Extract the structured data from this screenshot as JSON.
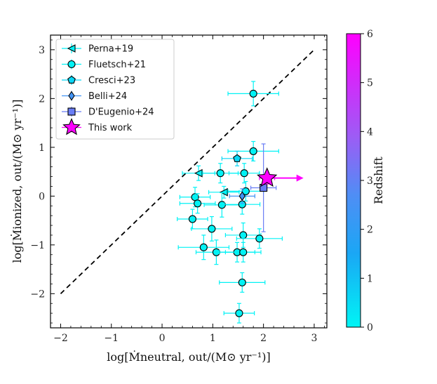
{
  "chart_data": {
    "type": "scatter",
    "xlabel": "log[Ṁneutral, out/(M⊙ yr⁻¹)]",
    "ylabel": "log[Ṁionized, out/(M⊙ yr⁻¹)]",
    "xlim": [
      -2.2,
      3.25
    ],
    "ylim": [
      -2.7,
      3.3
    ],
    "x_ticks": [
      "−2",
      "−1",
      "0",
      "1",
      "2",
      "3"
    ],
    "y_ticks": [
      "−2",
      "−1",
      "0",
      "1",
      "2",
      "3"
    ],
    "one_to_one_line": {
      "from": [
        -2,
        -2
      ],
      "to": [
        3,
        3
      ],
      "style": "dashed",
      "color": "#000000"
    },
    "colorbar": {
      "label": "Redshift",
      "range": [
        0,
        6
      ],
      "ticks": [
        "0",
        "1",
        "2",
        "3",
        "4",
        "5",
        "6"
      ],
      "colors": [
        "#00f5f5",
        "#ff00ff"
      ]
    },
    "legend": {
      "placement": "top-left",
      "entries": [
        "Perna+19",
        "Fluetsch+21",
        "Cresci+23",
        "Belli+24",
        "D'Eugenio+24",
        "This work"
      ]
    },
    "series": [
      {
        "name": "Perna+19",
        "marker": "triangle-left",
        "points": [
          {
            "x": 0.72,
            "y": 0.47,
            "xerr": 0.32,
            "yerr": 0.15,
            "z": 0.1
          },
          {
            "x": 1.22,
            "y": 0.08,
            "xerr": 0.3,
            "yerr": 0.12,
            "z": 0.1
          }
        ]
      },
      {
        "name": "Fluetsch+21",
        "marker": "circle",
        "points": [
          {
            "x": 1.8,
            "y": 2.1,
            "xerr": 0.5,
            "yerr": 0.25,
            "z": 0.05
          },
          {
            "x": 1.8,
            "y": 0.92,
            "xerr": 0.5,
            "yerr": 0.2,
            "z": 0.05
          },
          {
            "x": 1.15,
            "y": 0.47,
            "xerr": 0.35,
            "yerr": 0.2,
            "z": 0.05
          },
          {
            "x": 1.62,
            "y": 0.47,
            "xerr": 0.3,
            "yerr": 0.2,
            "z": 0.05
          },
          {
            "x": 1.65,
            "y": 0.1,
            "xerr": 0.35,
            "yerr": 0.2,
            "z": 0.05
          },
          {
            "x": 0.65,
            "y": -0.02,
            "xerr": 0.3,
            "yerr": 0.2,
            "z": 0.05
          },
          {
            "x": 0.7,
            "y": -0.15,
            "xerr": 0.35,
            "yerr": 0.2,
            "z": 0.05
          },
          {
            "x": 1.18,
            "y": -0.18,
            "xerr": 0.35,
            "yerr": 0.25,
            "z": 0.05
          },
          {
            "x": 1.58,
            "y": -0.17,
            "xerr": 0.35,
            "yerr": 0.2,
            "z": 0.05
          },
          {
            "x": 0.6,
            "y": -0.47,
            "xerr": 0.3,
            "yerr": 0.2,
            "z": 0.05
          },
          {
            "x": 0.98,
            "y": -0.67,
            "xerr": 0.4,
            "yerr": 0.25,
            "z": 0.05
          },
          {
            "x": 1.6,
            "y": -0.8,
            "xerr": 0.35,
            "yerr": 0.25,
            "z": 0.05
          },
          {
            "x": 1.92,
            "y": -0.87,
            "xerr": 0.45,
            "yerr": 0.2,
            "z": 0.05
          },
          {
            "x": 0.82,
            "y": -1.05,
            "xerr": 0.5,
            "yerr": 0.25,
            "z": 0.05
          },
          {
            "x": 1.07,
            "y": -1.15,
            "xerr": 0.4,
            "yerr": 0.25,
            "z": 0.05
          },
          {
            "x": 1.48,
            "y": -1.15,
            "xerr": 0.35,
            "yerr": 0.2,
            "z": 0.05
          },
          {
            "x": 1.6,
            "y": -1.15,
            "xerr": 0.35,
            "yerr": 0.2,
            "z": 0.05
          },
          {
            "x": 1.58,
            "y": -1.77,
            "xerr": 0.45,
            "yerr": 0.2,
            "z": 0.05
          },
          {
            "x": 1.52,
            "y": -2.4,
            "xerr": 0.3,
            "yerr": 0.2,
            "z": 0.05
          }
        ]
      },
      {
        "name": "Cresci+23",
        "marker": "pentagon",
        "points": [
          {
            "x": 1.48,
            "y": 0.77,
            "xerr": 0.3,
            "yerr": 0.15,
            "z": 0.6
          }
        ]
      },
      {
        "name": "Belli+24",
        "marker": "diamond",
        "points": [
          {
            "x": 1.58,
            "y": 0.0,
            "xerr": 0.25,
            "yerr": 0.15,
            "z": 2.4
          }
        ]
      },
      {
        "name": "D'Eugenio+24",
        "marker": "square",
        "points": [
          {
            "x": 2.0,
            "y": 0.17,
            "xerr": 0.25,
            "yerr": 0.9,
            "z": 3.1
          }
        ]
      },
      {
        "name": "This work",
        "marker": "star",
        "points": [
          {
            "x": 2.07,
            "y": 0.37,
            "xerr": 0.15,
            "yerr": 0.12,
            "z": 6.0,
            "lower_limit_x": true
          }
        ]
      }
    ]
  }
}
